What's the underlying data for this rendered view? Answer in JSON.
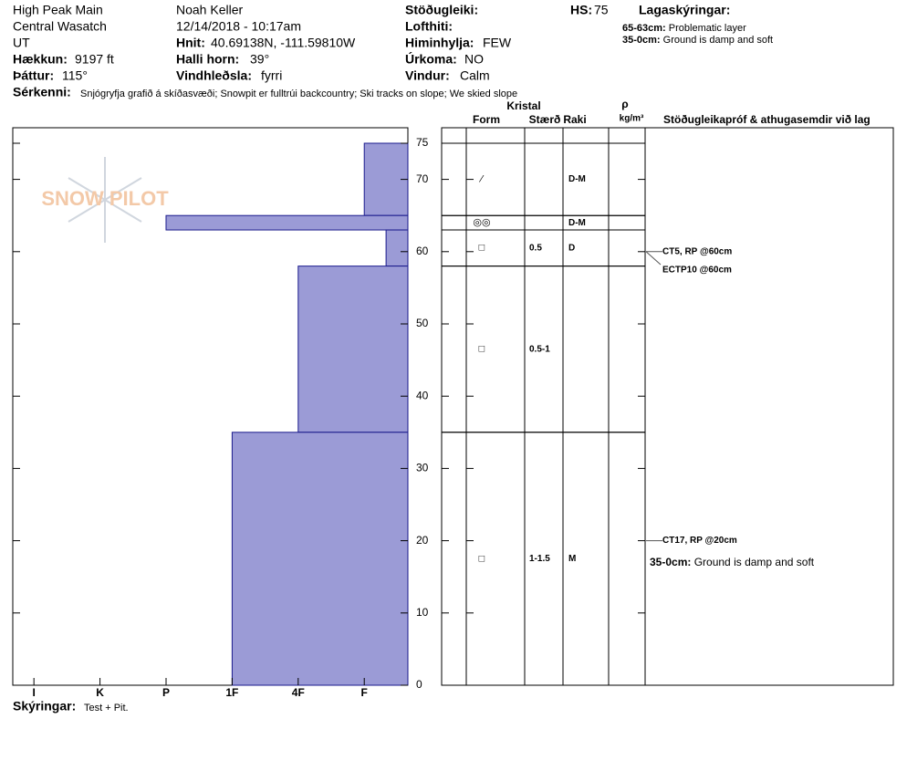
{
  "header": {
    "location": "High Peak Main",
    "range": "Central Wasatch",
    "state": "UT",
    "elevation_label": "Hækkun:",
    "elevation": "9197 ft",
    "aspect_label": "Þáttur:",
    "aspect": "115°",
    "observer": "Noah Keller",
    "datetime": "12/14/2018 - 10:17am",
    "coords_label": "Hnit:",
    "coords": "40.69138N, -111.59810W",
    "slope_label": "Halli horn:",
    "slope": "39°",
    "wind_loading_label": "Vindhleðsla:",
    "wind_loading": "fyrri",
    "stability_label": "Stöðugleiki:",
    "air_temp_label": "Lofthiti:",
    "sky_label": "Himinhylja:",
    "sky": "FEW",
    "precip_label": "Úrkoma:",
    "precip": "NO",
    "wind_label": "Vindur:",
    "wind": "Calm",
    "hs_label": "HS:",
    "hs": "75",
    "layer_notes_label": "Lagaskýringar:",
    "layer_notes": [
      {
        "range": "65-63cm:",
        "text": "Problematic layer"
      },
      {
        "range": "35-0cm:",
        "text": "Ground is damp and soft"
      }
    ],
    "features_label": "Sérkenni:",
    "features": "Snjógryfja grafið á skíðasvæði; Snowpit er fulltrúi backcountry; Ski tracks on slope; We skied slope"
  },
  "logo": "SNOW PILOT",
  "profile": {
    "ylim": [
      0,
      75
    ],
    "yticks": [
      0,
      10,
      20,
      30,
      40,
      50,
      60,
      70,
      75
    ],
    "hardness_lim": [
      6.32,
      0.34
    ],
    "hardness_ticks": [
      {
        "value": 6,
        "label": "I"
      },
      {
        "value": 5,
        "label": "K"
      },
      {
        "value": 4,
        "label": "P"
      },
      {
        "value": 3,
        "label": "1F"
      },
      {
        "value": 2,
        "label": "4F"
      },
      {
        "value": 1,
        "label": "F"
      }
    ],
    "color": "#9b9bd6",
    "layers": [
      {
        "top": 75,
        "bottom": 65,
        "hardness": 1,
        "form": "⁄",
        "size": null,
        "moisture": "D-M"
      },
      {
        "top": 65,
        "bottom": 63,
        "hardness": 4,
        "form": "◎◎",
        "size": null,
        "moisture": "D-M"
      },
      {
        "top": 63,
        "bottom": 58,
        "hardness": 0.67,
        "form": "□",
        "size": "0.5",
        "moisture": "D"
      },
      {
        "top": 58,
        "bottom": 35,
        "hardness": 2,
        "form": "□",
        "size": "0.5-1",
        "moisture": null
      },
      {
        "top": 35,
        "bottom": 0,
        "hardness": 3,
        "form": "□",
        "size": "1-1.5",
        "moisture": "M"
      }
    ]
  },
  "table": {
    "crystal": "Kristal",
    "form": "Form",
    "size": "Stærð",
    "moisture": "Raki",
    "rho": "ρ",
    "density_unit": "kg/m³",
    "comments": "Stöðugleikapróf & athugasemdir við lag"
  },
  "tests": [
    {
      "label": "CT5, RP @60cm",
      "depth": 60
    },
    {
      "label": "ECTP10 @60cm",
      "depth": 60
    },
    {
      "label": "CT17, RP @20cm",
      "depth": 20
    }
  ],
  "comment": {
    "range": "35-0cm:",
    "text": "Ground is damp and soft"
  },
  "footer": {
    "label": "Skýringar:",
    "text": "Test + Pit."
  }
}
